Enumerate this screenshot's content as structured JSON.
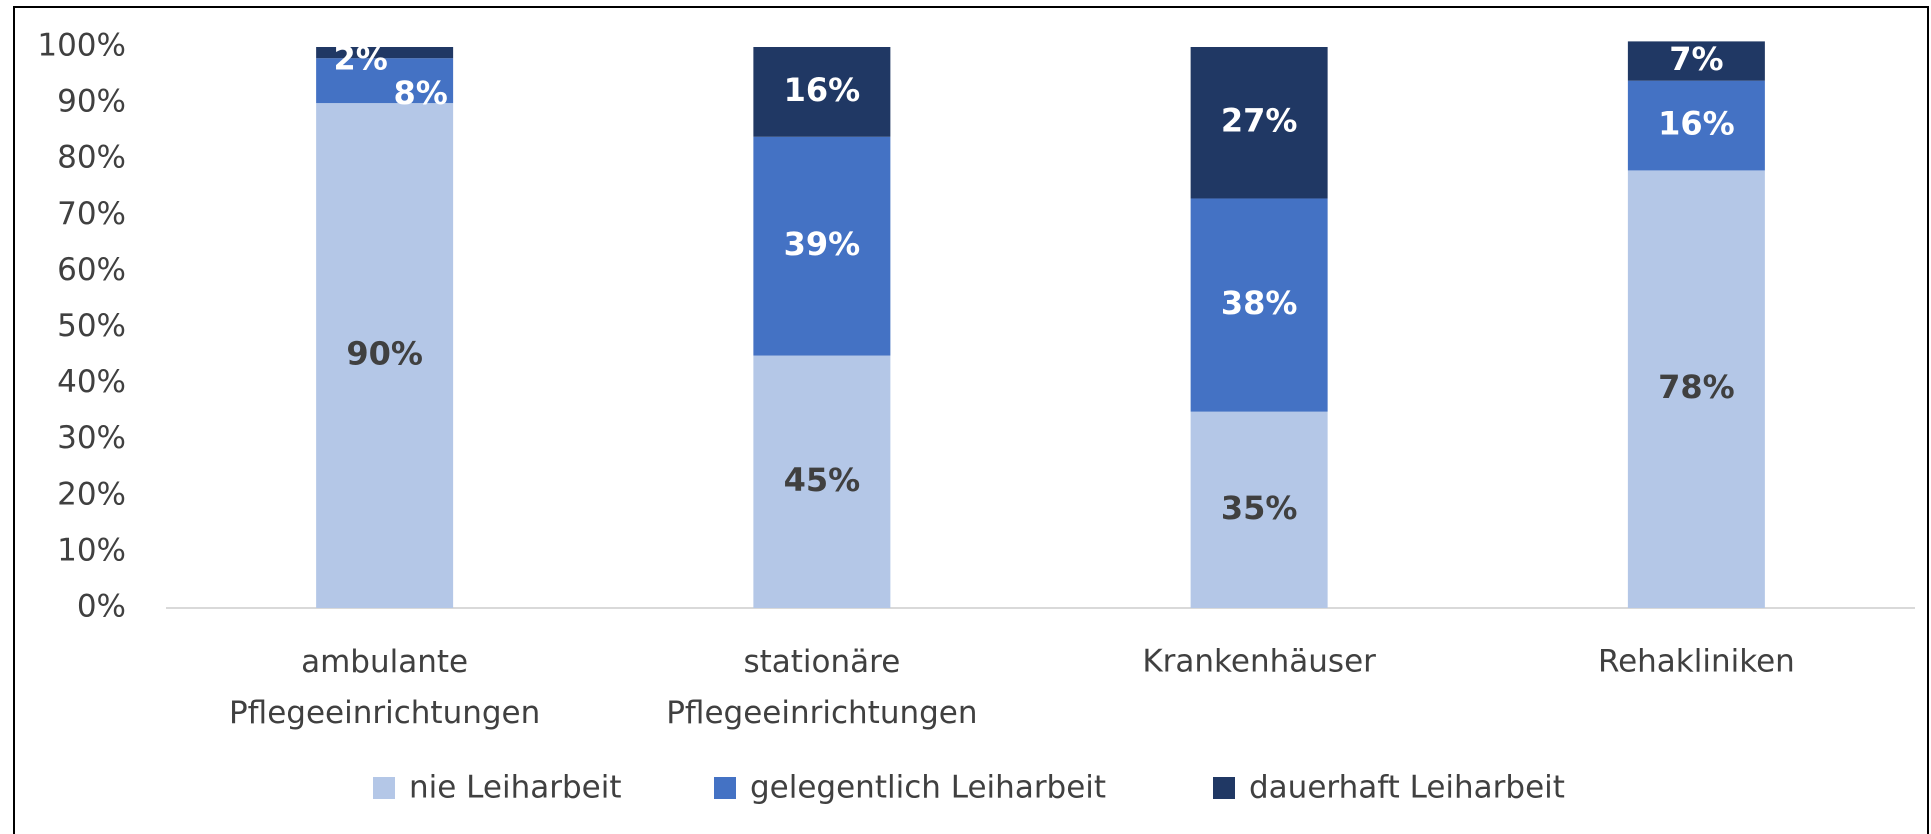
{
  "chart_data": {
    "type": "stacked_bar",
    "categories": [
      "ambulante Pflegeeinrichtungen",
      "stationäre Pflegeeinrichtungen",
      "Krankenhäuser",
      "Rehakliniken"
    ],
    "series": [
      {
        "name": "nie Leiharbeit",
        "color": "#b4c7e7",
        "values": [
          90,
          45,
          35,
          78
        ],
        "value_labels": [
          "90%",
          "45%",
          "35%",
          "78%"
        ]
      },
      {
        "name": "gelegentlich Leiharbeit",
        "color": "#4472c4",
        "values": [
          8,
          39,
          38,
          16
        ],
        "value_labels": [
          "8%",
          "39%",
          "38%",
          "16%"
        ]
      },
      {
        "name": "dauerhaft Leiharbeit",
        "color": "#203864",
        "values": [
          2,
          16,
          27,
          7
        ],
        "value_labels": [
          "2%",
          "16%",
          "27%",
          "7%"
        ]
      }
    ],
    "ylim": [
      0,
      100
    ],
    "yticks": [
      {
        "value": 0,
        "label": "0%"
      },
      {
        "value": 10,
        "label": "10%"
      },
      {
        "value": 20,
        "label": "20%"
      },
      {
        "value": 30,
        "label": "30%"
      },
      {
        "value": 40,
        "label": "40%"
      },
      {
        "value": 50,
        "label": "50%"
      },
      {
        "value": 60,
        "label": "60%"
      },
      {
        "value": 70,
        "label": "70%"
      },
      {
        "value": 80,
        "label": "80%"
      },
      {
        "value": 90,
        "label": "90%"
      },
      {
        "value": 100,
        "label": "100%"
      }
    ],
    "grid": false,
    "legend": "bottom"
  }
}
